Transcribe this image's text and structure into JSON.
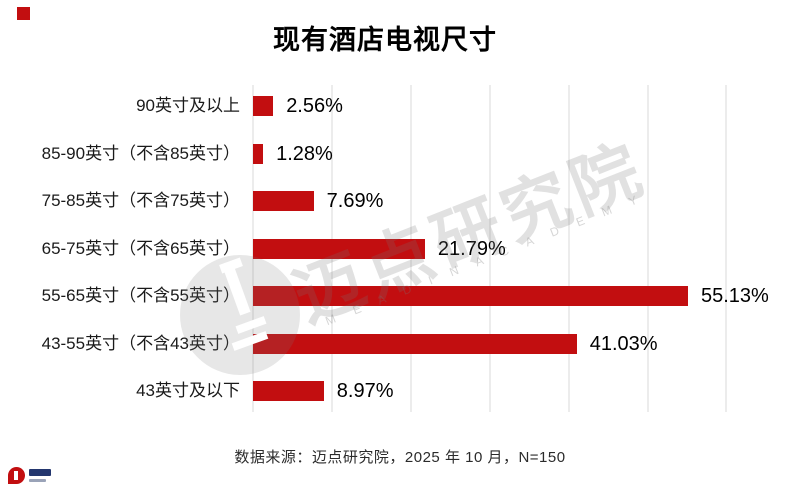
{
  "title": "现有酒店电视尺寸",
  "footer": {
    "source": "数据来源：迈点研究院，2025 年 10 月，N=150"
  },
  "watermark": {
    "cn": "迈点研究院",
    "en": "M E A D I N   A C A D E M Y",
    "emblem": "meadin-circle-emblem"
  },
  "colors": {
    "bar": "#c20e10",
    "grid": "#ececec",
    "watermark_gray": "#d9d9d9",
    "brand_red": "#c20e10",
    "logo_navy": "#23366e"
  },
  "chart_data": {
    "type": "bar",
    "orientation": "horizontal",
    "title": "现有酒店电视尺寸",
    "categories": [
      "90英寸及以上",
      "85-90英寸（不含85英寸）",
      "75-85英寸（不含75英寸）",
      "65-75英寸（不含65英寸）",
      "55-65英寸（不含55英寸）",
      "43-55英寸（不含43英寸）",
      "43英寸及以下"
    ],
    "values": [
      2.56,
      1.28,
      7.69,
      21.79,
      55.13,
      41.03,
      8.97
    ],
    "value_labels": [
      "2.56%",
      "1.28%",
      "7.69%",
      "21.79%",
      "55.13%",
      "41.03%",
      "8.97%"
    ],
    "xlabel": "",
    "ylabel": "",
    "axis": {
      "min": 0,
      "max": 60,
      "step": 10,
      "unit": "%"
    },
    "grid": true,
    "legend": "none",
    "bar_color": "#c20e10"
  }
}
